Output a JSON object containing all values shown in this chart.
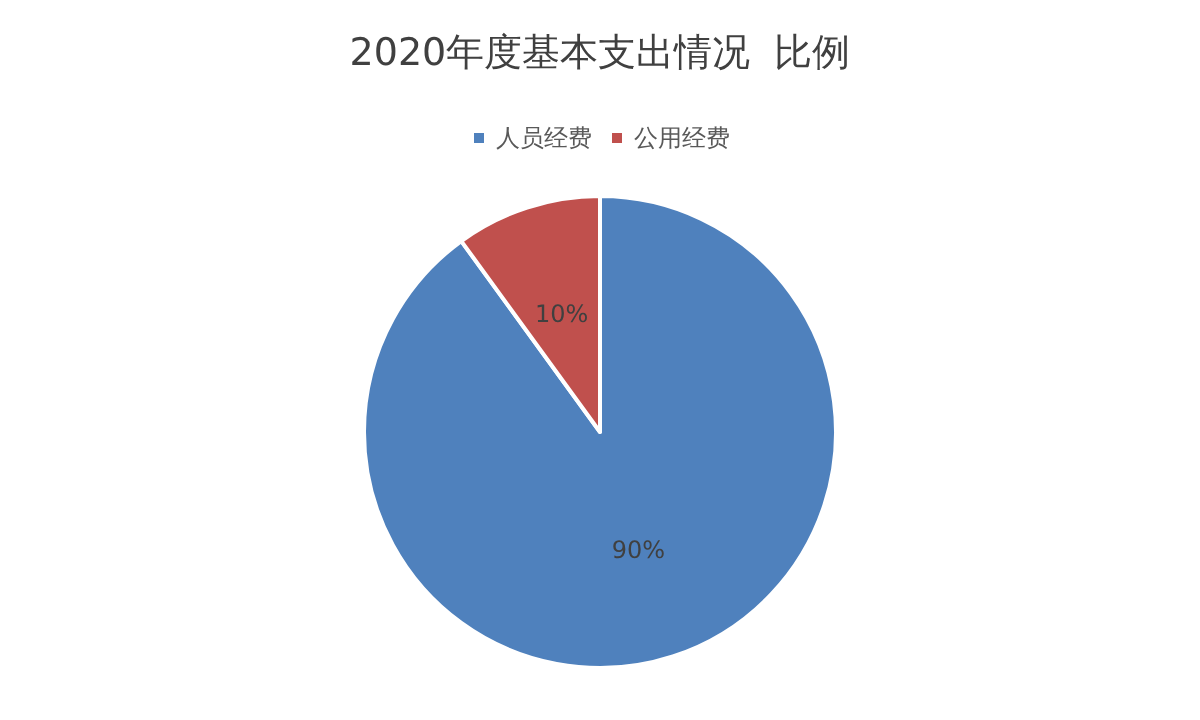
{
  "chart_data": {
    "type": "pie",
    "title": "2020年度基本支出情况  比例",
    "categories": [
      "人员经费",
      "公用经费"
    ],
    "values": [
      90,
      10
    ],
    "colors": [
      "#4f81bd",
      "#c0504d"
    ],
    "value_labels": [
      "90%",
      "10%"
    ],
    "legend": "top"
  }
}
